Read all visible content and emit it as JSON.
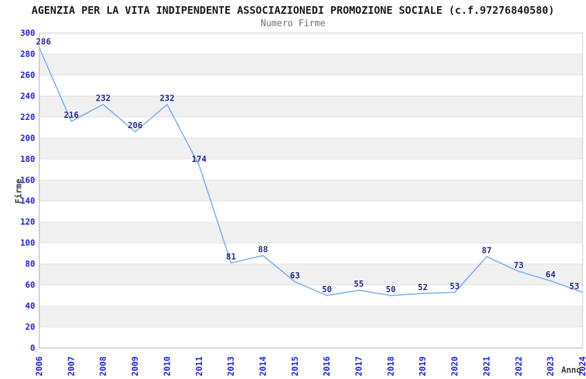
{
  "chart_data": {
    "type": "line",
    "title": "AGENZIA PER LA VITA INDIPENDENTE ASSOCIAZIONEDI PROMOZIONE SOCIALE (c.f.97276840580)",
    "subtitle": "Numero Firme",
    "xlabel": "Anno",
    "ylabel": "Firme",
    "categories": [
      "2006",
      "2007",
      "2008",
      "2009",
      "2010",
      "2011",
      "2013",
      "2014",
      "2015",
      "2016",
      "2017",
      "2018",
      "2019",
      "2020",
      "2021",
      "2022",
      "2023",
      "2024"
    ],
    "series": [
      {
        "name": "Numero Firme",
        "values": [
          286,
          216,
          232,
          206,
          232,
          174,
          81,
          88,
          63,
          50,
          55,
          50,
          52,
          53,
          87,
          73,
          64,
          53
        ]
      }
    ],
    "ylim": [
      0,
      300
    ],
    "yticks": [
      0,
      20,
      40,
      60,
      80,
      100,
      120,
      140,
      160,
      180,
      200,
      220,
      240,
      260,
      280,
      300
    ],
    "grid": "alternating-horizontal-bands",
    "legend_position": "none",
    "colors": {
      "line": "#7AADEE",
      "data_label": "#2B2B8F",
      "tick_label": "#2222DD",
      "band": "#F0F0F0",
      "gridline": "#E2E2E2",
      "plot_border": "#C9C9C9",
      "axis_line": "#A8A8A8",
      "title": "#1A1A1A",
      "subtitle": "#6E6E6E",
      "axis_title": "#3A3A3A",
      "background": "#FFFFFF"
    }
  }
}
